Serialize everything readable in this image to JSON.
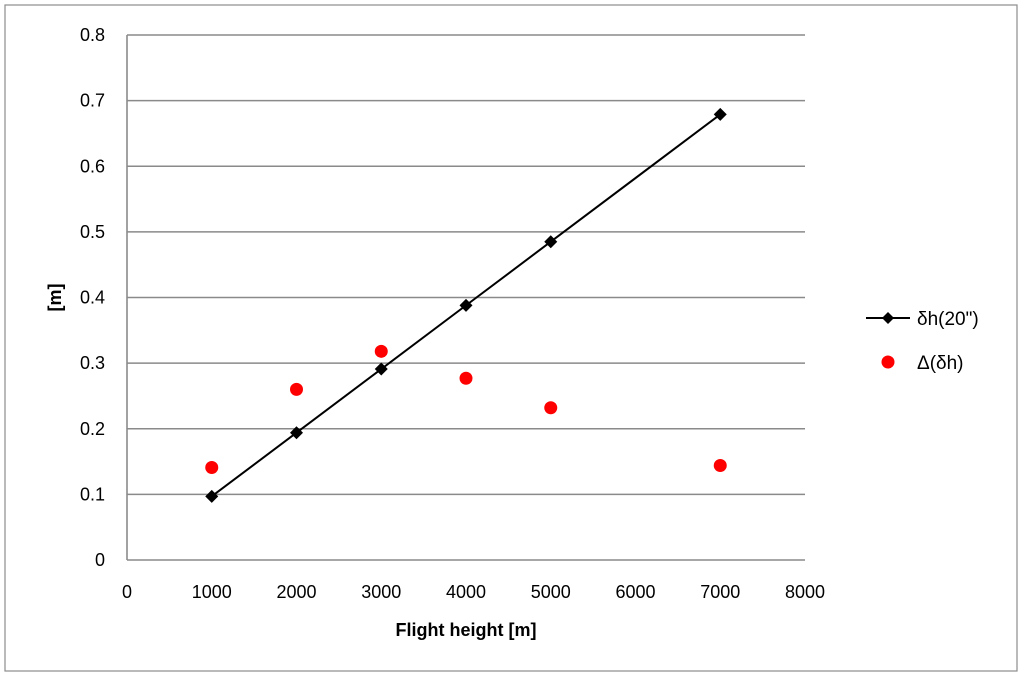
{
  "chart_data": {
    "type": "scatter",
    "title": "",
    "xlabel": "Flight height [m]",
    "ylabel": "[m]",
    "xlim": [
      0,
      8000
    ],
    "ylim": [
      0,
      0.8
    ],
    "x_ticks": [
      0,
      1000,
      2000,
      3000,
      4000,
      5000,
      6000,
      7000,
      8000
    ],
    "y_ticks": [
      0,
      0.1,
      0.2,
      0.3,
      0.4,
      0.5,
      0.6,
      0.7,
      0.8
    ],
    "grid": "horizontal",
    "legend_position": "right",
    "series": [
      {
        "name": "δh(20\")",
        "mode": "line+markers",
        "marker": "diamond",
        "color": "#000000",
        "x": [
          1000,
          2000,
          3000,
          4000,
          5000,
          7000
        ],
        "y": [
          0.097,
          0.194,
          0.291,
          0.388,
          0.485,
          0.679
        ]
      },
      {
        "name": "Δ(δh)",
        "mode": "markers",
        "marker": "circle",
        "color": "#ff0000",
        "x": [
          1000,
          2000,
          3000,
          4000,
          5000,
          7000
        ],
        "y": [
          0.141,
          0.26,
          0.318,
          0.277,
          0.232,
          0.144
        ]
      }
    ]
  }
}
